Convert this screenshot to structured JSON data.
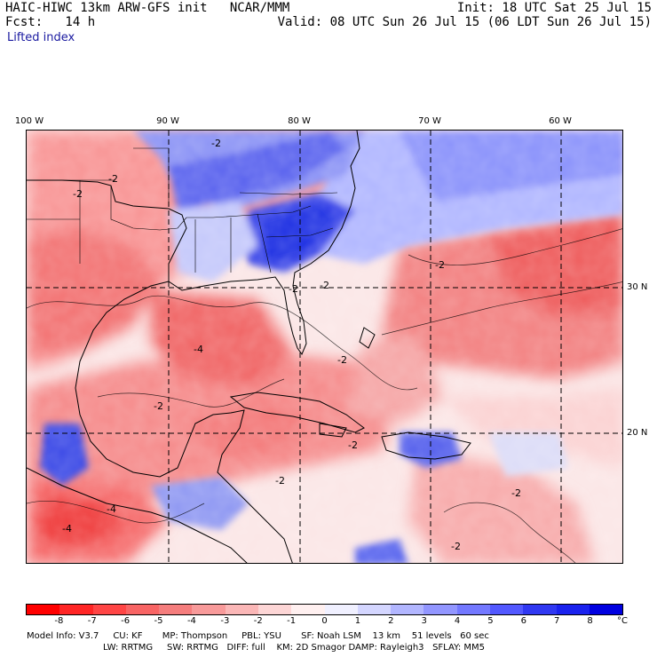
{
  "header": {
    "model": "HAIC-HIWC 13km ARW-GFS init",
    "org": "NCAR/MMM",
    "fcst": "Fcst:   14 h",
    "init": "Init: 18 UTC Sat 25 Jul 15",
    "valid": "Valid: 08 UTC Sun 26 Jul 15 (06 LDT Sun 26 Jul 15)",
    "variable": "Lifted index"
  },
  "map": {
    "lon_labels": [
      "100 W",
      "90 W",
      "80 W",
      "70 W",
      "60 W"
    ],
    "lat_labels": [
      "30 N",
      "20 N"
    ],
    "contour_labels": [
      "-2",
      "-2",
      "-2",
      "-2",
      "-2",
      "-2",
      "-2",
      "-2",
      "-2",
      "-2",
      "-2",
      "-2",
      "-4",
      "-4",
      "-4"
    ],
    "colors": {
      "ocean_neutral": "#fbe9e9",
      "stable_strong": "#2b3fe8",
      "unstable_strong": "#ff1a1a",
      "coast": "#000000"
    }
  },
  "colorbar": {
    "ticks": [
      "-8",
      "-7",
      "-6",
      "-5",
      "-4",
      "-3",
      "-2",
      "-1",
      "0",
      "1",
      "2",
      "3",
      "4",
      "5",
      "6",
      "7",
      "8"
    ],
    "unit": "°C",
    "colors": [
      "#ff0000",
      "#ff2525",
      "#ff4545",
      "#f86464",
      "#f57d7d",
      "#f89a9a",
      "#fbb7b7",
      "#fdd6d6",
      "#fff0f0",
      "#f0f0ff",
      "#d4d6ff",
      "#b2b6ff",
      "#9296ff",
      "#7378ff",
      "#5258ff",
      "#3038f2",
      "#1a22ee",
      "#0000e0"
    ]
  },
  "footer": {
    "line1": "Model Info: V3.7     CU: KF       MP: Thompson     PBL: YSU       SF: Noah LSM    13 km    51 levels   60 sec",
    "line2": "LW: RRTMG     SW: RRTMG   DIFF: full    KM: 2D Smagor DAMP: Rayleigh3   SFLAY: MM5"
  }
}
